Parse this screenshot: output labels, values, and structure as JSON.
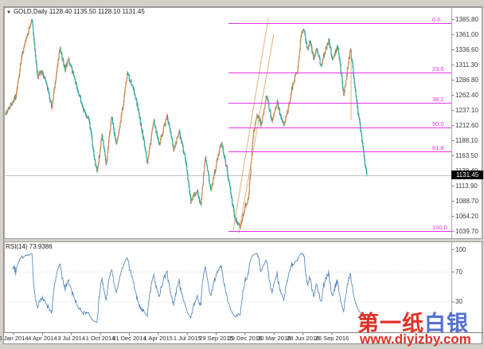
{
  "window": {
    "arrow": "▼",
    "title": "GOLD,Daily  1128.40 1135.50 1128.10 1131.45"
  },
  "colors": {
    "up_candle": "#c9854f",
    "down_candle": "#2ba49a",
    "rsi_line": "#4a7db5",
    "fib_line": "#e533e5",
    "trend_line": "#e2a86a",
    "current_price_line": "#c4c4c4",
    "axis_text": "#3a3a3a",
    "watermark_red": "#e03028",
    "watermark_blue": "#5570d0",
    "background": "#ffffff",
    "frame": "#d4d1ca"
  },
  "price_axis": {
    "labels": [
      "1385.80",
      "1361.00",
      "1336.60",
      "1311.30",
      "1286.80",
      "1262.40",
      "1237.10",
      "1212.60",
      "1188.10",
      "1163.50",
      "1138.40",
      "1113.90",
      "1088.70",
      "1064.20",
      "1039.70"
    ],
    "current": "1131.45"
  },
  "rsi": {
    "title": "RSI(14) 73.9386",
    "axis_labels": [
      "100",
      "70",
      "30"
    ]
  },
  "watermark": {
    "name_red": "第一纸",
    "name_blue": "白银",
    "url": "www.diyizby.com"
  },
  "chart_data": {
    "type": "candlestick",
    "symbol": "GOLD",
    "timeframe": "Daily",
    "title": "GOLD,Daily",
    "ohlc_current": {
      "open": 1128.4,
      "high": 1135.5,
      "low": 1128.1,
      "close": 1131.45
    },
    "current_price": 1131.45,
    "y_axis": {
      "range": [
        1027,
        1405
      ],
      "tick_labels": [
        1385.8,
        1361.0,
        1336.6,
        1311.3,
        1286.8,
        1262.4,
        1237.1,
        1212.6,
        1188.1,
        1163.5,
        1138.4,
        1113.9,
        1088.7,
        1064.2,
        1039.7
      ]
    },
    "x_axis": {
      "labels": [
        "6 Jan 2014",
        "4 Apr 2014",
        "3 Jul 2014",
        "1 Oct 2014",
        "31 Dec 2014",
        "1 Apr 2015",
        "1 Jul 2015",
        "29 Sep 2015",
        "29 Dec 2015",
        "30 Mar 2016",
        "28 Jun 2016",
        "26 Sep 2016"
      ]
    },
    "bars": 717,
    "price_path_anchors": [
      [
        0.0,
        1232
      ],
      [
        0.029,
        1262
      ],
      [
        0.046,
        1330
      ],
      [
        0.073,
        1388
      ],
      [
        0.088,
        1292
      ],
      [
        0.099,
        1302
      ],
      [
        0.112,
        1284
      ],
      [
        0.128,
        1242
      ],
      [
        0.15,
        1338
      ],
      [
        0.165,
        1305
      ],
      [
        0.174,
        1322
      ],
      [
        0.194,
        1282
      ],
      [
        0.216,
        1238
      ],
      [
        0.231,
        1222
      ],
      [
        0.244,
        1165
      ],
      [
        0.253,
        1135
      ],
      [
        0.267,
        1198
      ],
      [
        0.278,
        1148
      ],
      [
        0.293,
        1228
      ],
      [
        0.306,
        1182
      ],
      [
        0.319,
        1222
      ],
      [
        0.337,
        1298
      ],
      [
        0.359,
        1262
      ],
      [
        0.377,
        1205
      ],
      [
        0.392,
        1152
      ],
      [
        0.41,
        1220
      ],
      [
        0.425,
        1182
      ],
      [
        0.447,
        1228
      ],
      [
        0.465,
        1172
      ],
      [
        0.48,
        1202
      ],
      [
        0.496,
        1162
      ],
      [
        0.513,
        1088
      ],
      [
        0.529,
        1108
      ],
      [
        0.54,
        1082
      ],
      [
        0.553,
        1162
      ],
      [
        0.568,
        1105
      ],
      [
        0.584,
        1152
      ],
      [
        0.597,
        1188
      ],
      [
        0.612,
        1142
      ],
      [
        0.634,
        1062
      ],
      [
        0.65,
        1048
      ],
      [
        0.663,
        1082
      ],
      [
        0.672,
        1092
      ],
      [
        0.685,
        1200
      ],
      [
        0.698,
        1232
      ],
      [
        0.707,
        1212
      ],
      [
        0.722,
        1262
      ],
      [
        0.738,
        1218
      ],
      [
        0.751,
        1252
      ],
      [
        0.76,
        1230
      ],
      [
        0.769,
        1212
      ],
      [
        0.782,
        1242
      ],
      [
        0.795,
        1282
      ],
      [
        0.808,
        1302
      ],
      [
        0.817,
        1358
      ],
      [
        0.826,
        1372
      ],
      [
        0.835,
        1336
      ],
      [
        0.843,
        1352
      ],
      [
        0.852,
        1322
      ],
      [
        0.861,
        1342
      ],
      [
        0.872,
        1310
      ],
      [
        0.883,
        1332
      ],
      [
        0.894,
        1352
      ],
      [
        0.905,
        1320
      ],
      [
        0.919,
        1342
      ],
      [
        0.927,
        1305
      ],
      [
        0.936,
        1262
      ],
      [
        0.945,
        1302
      ],
      [
        0.954,
        1337
      ],
      [
        0.963,
        1295
      ],
      [
        0.971,
        1252
      ],
      [
        0.98,
        1215
      ],
      [
        0.989,
        1175
      ],
      [
        0.996,
        1145
      ],
      [
        1.0,
        1131
      ]
    ],
    "fibonacci": {
      "start_t": 0.617,
      "levels": [
        {
          "label": "0.0",
          "price": 1380.0
        },
        {
          "label": "23.6",
          "price": 1299.8
        },
        {
          "label": "38.2",
          "price": 1250.1
        },
        {
          "label": "50.0",
          "price": 1210.0
        },
        {
          "label": "61.8",
          "price": 1169.9
        },
        {
          "label": "100.0",
          "price": 1040.0
        }
      ]
    },
    "trendlines": [
      {
        "from": [
          0.63,
          1042
        ],
        "to": [
          0.727,
          1389
        ]
      },
      {
        "from": [
          0.645,
          1036
        ],
        "to": [
          0.742,
          1362
        ]
      },
      {
        "from": [
          0.956,
          1337
        ],
        "to": [
          0.956,
          1222
        ]
      }
    ],
    "indicator": {
      "name": "RSI",
      "period": 14,
      "display": "RSI(14) 73.9386",
      "range": [
        0,
        100
      ],
      "scale_labels": [
        100,
        70,
        30
      ],
      "levels": [
        70,
        30
      ]
    }
  }
}
